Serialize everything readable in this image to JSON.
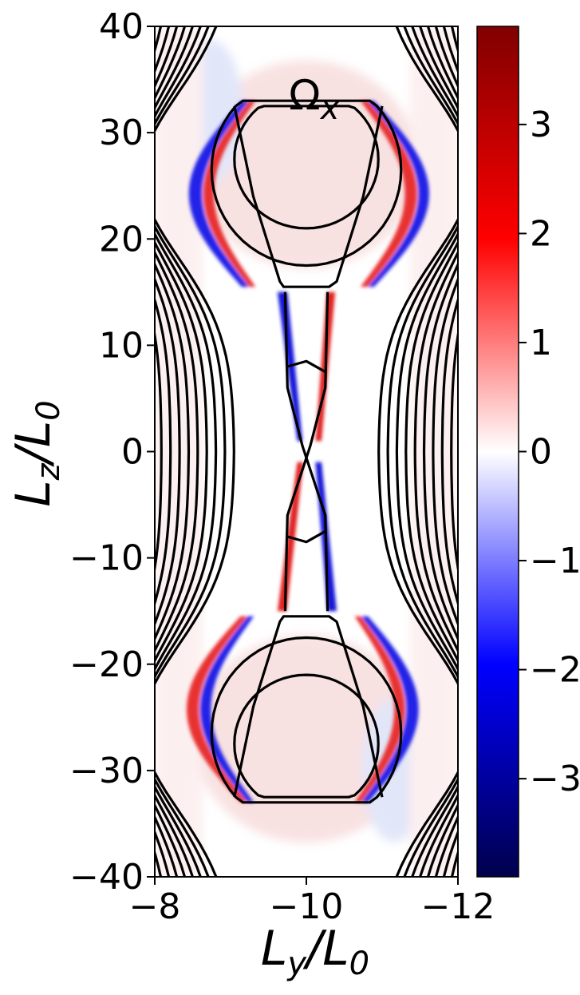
{
  "chart_data": {
    "type": "heatmap",
    "title": "",
    "annotation": {
      "base": "Ω",
      "sub": "x"
    },
    "xlabel": {
      "base": "L",
      "sub": "y",
      "rest": "/L",
      "sub2": "0"
    },
    "ylabel": {
      "base": "L",
      "sub": "z",
      "rest": "/L",
      "sub2": "0"
    },
    "xlim": [
      -8,
      -12
    ],
    "ylim": [
      -40,
      40
    ],
    "x_ticks": [
      -8,
      -10,
      -12
    ],
    "x_tick_labels": [
      "−8",
      "−10",
      "−12"
    ],
    "y_ticks": [
      40,
      30,
      20,
      10,
      0,
      -10,
      -20,
      -30,
      -40
    ],
    "y_tick_labels": [
      "40",
      "30",
      "20",
      "10",
      "0",
      "−10",
      "−20",
      "−30",
      "−40"
    ],
    "colorbar": {
      "range": [
        -3.9,
        3.9
      ],
      "ticks": [
        3,
        2,
        1,
        0,
        -1,
        -2,
        -3
      ],
      "tick_labels": [
        "3",
        "2",
        "1",
        "0",
        "−1",
        "−2",
        "−3"
      ],
      "colormap": "seismic",
      "colors": [
        "#00004c",
        "#0000ff",
        "#ffffff",
        "#ff0000",
        "#800000"
      ]
    },
    "field_description_features": {
      "contour_color": "#000000",
      "max_vorticity_colors": {
        "positive": "#ff0000",
        "negative": "#0000ff"
      }
    }
  }
}
